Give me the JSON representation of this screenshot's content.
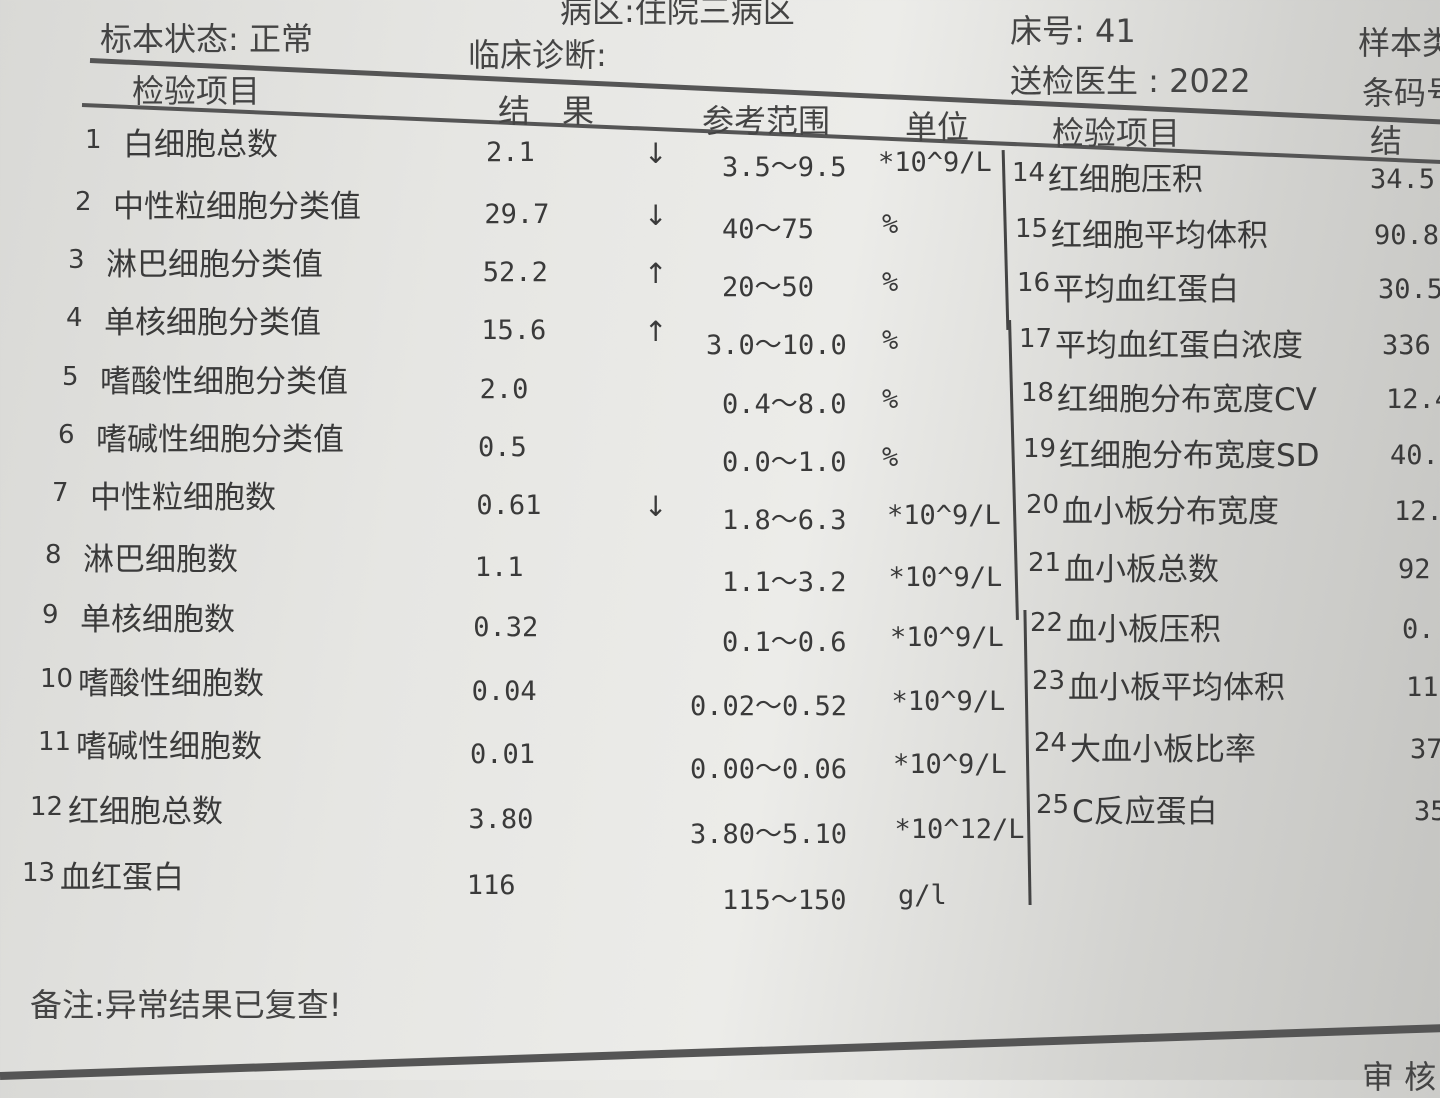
{
  "header": {
    "ward": "病区:住院三病区",
    "specimen_status": "标本状态: 正常",
    "clinical_diagnosis": "临床诊断:",
    "bed_number": "床号: 41",
    "doctor": "送检医生 : 2022",
    "specimen_type_partial": "样本类",
    "barcode_partial": "条码号"
  },
  "columns": {
    "item": "检验项目",
    "result": "结　果",
    "reference": "参考范围",
    "unit": "单位",
    "item_right": "检验项目",
    "result_right": "结"
  },
  "left_rows": [
    {
      "no": "1",
      "name": "白细胞总数",
      "result": "2.1",
      "flag": "↓",
      "range": "3.5～9.5",
      "unit": "*10^9/L"
    },
    {
      "no": "2",
      "name": "中性粒细胞分类值",
      "result": "29.7",
      "flag": "↓",
      "range": "40～75",
      "unit": "%"
    },
    {
      "no": "3",
      "name": "淋巴细胞分类值",
      "result": "52.2",
      "flag": "↑",
      "range": "20～50",
      "unit": "%"
    },
    {
      "no": "4",
      "name": "单核细胞分类值",
      "result": "15.6",
      "flag": "↑",
      "range": "3.0～10.0",
      "unit": "%"
    },
    {
      "no": "5",
      "name": "嗜酸性细胞分类值",
      "result": "2.0",
      "flag": "",
      "range": "0.4～8.0",
      "unit": "%"
    },
    {
      "no": "6",
      "name": "嗜碱性细胞分类值",
      "result": "0.5",
      "flag": "",
      "range": "0.0～1.0",
      "unit": "%"
    },
    {
      "no": "7",
      "name": "中性粒细胞数",
      "result": "0.61",
      "flag": "↓",
      "range": "1.8～6.3",
      "unit": "*10^9/L"
    },
    {
      "no": "8",
      "name": "淋巴细胞数",
      "result": "1.1",
      "flag": "",
      "range": "1.1～3.2",
      "unit": "*10^9/L"
    },
    {
      "no": "9",
      "name": "单核细胞数",
      "result": "0.32",
      "flag": "",
      "range": "0.1～0.6",
      "unit": "*10^9/L"
    },
    {
      "no": "10",
      "name": "嗜酸性细胞数",
      "result": "0.04",
      "flag": "",
      "range": "0.02～0.52",
      "unit": "*10^9/L"
    },
    {
      "no": "11",
      "name": "嗜碱性细胞数",
      "result": "0.01",
      "flag": "",
      "range": "0.00～0.06",
      "unit": "*10^9/L"
    },
    {
      "no": "12",
      "name": "红细胞总数",
      "result": "3.80",
      "flag": "",
      "range": "3.80～5.10",
      "unit": "*10^12/L"
    },
    {
      "no": "13",
      "name": "血红蛋白",
      "result": "116",
      "flag": "",
      "range": "115～150",
      "unit": "g/l"
    }
  ],
  "right_rows": [
    {
      "no": "14",
      "name": "红细胞压积",
      "result": "34.5"
    },
    {
      "no": "15",
      "name": "红细胞平均体积",
      "result": "90.8"
    },
    {
      "no": "16",
      "name": "平均血红蛋白",
      "result": "30.5"
    },
    {
      "no": "17",
      "name": "平均血红蛋白浓度",
      "result": "336"
    },
    {
      "no": "18",
      "name": "红细胞分布宽度CV",
      "result": "12.4"
    },
    {
      "no": "19",
      "name": "红细胞分布宽度SD",
      "result": "40."
    },
    {
      "no": "20",
      "name": "血小板分布宽度",
      "result": "12."
    },
    {
      "no": "21",
      "name": "血小板总数",
      "result": "92"
    },
    {
      "no": "22",
      "name": "血小板压积",
      "result": "0."
    },
    {
      "no": "23",
      "name": "血小板平均体积",
      "result": "11"
    },
    {
      "no": "24",
      "name": "大血小板比率",
      "result": "37"
    },
    {
      "no": "25",
      "name": "C反应蛋白",
      "result": "35"
    }
  ],
  "footer": {
    "remark": "备注:异常结果已复查!",
    "reviewer_partial": "审 核"
  }
}
